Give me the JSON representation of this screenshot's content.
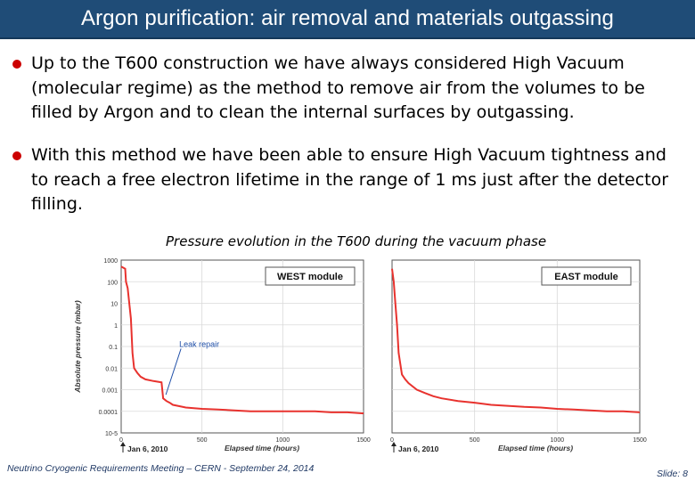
{
  "slide": {
    "title": "Argon purification: air removal and materials outgassing",
    "bullets": [
      "Up to the T600 construction we have always considered High Vacuum (molecular regime) as the method to remove air from the volumes to be filled by Argon and to clean the internal surfaces by outgassing.",
      "With this method we have been able to ensure High Vacuum tightness and to reach a free electron lifetime in the range of 1 ms just after the detector filling."
    ],
    "caption": "Pressure evolution in the T600 during the vacuum phase",
    "footer": "Neutrino Cryogenic Requirements Meeting – CERN - September 24, 2014",
    "slide_number": "Slide: 8",
    "colors": {
      "title_bar": "#1f4c77",
      "bullet": "#cc0000",
      "curve": "#e8322e",
      "annotation": "#1f4fa8"
    }
  },
  "chart_data": [
    {
      "type": "line",
      "label": "WEST module",
      "ylabel": "Absolute pressure (mbar)",
      "xlabel": "Elapsed time (hours)",
      "xlim": [
        0,
        1500
      ],
      "ylim": [
        1e-05,
        1000
      ],
      "yscale": "log",
      "yticks": [
        "1000",
        "100",
        "10",
        "1",
        "0.1",
        "0.01",
        "0.001",
        "0.0001",
        "10-5"
      ],
      "xticks": [
        "0",
        "500",
        "1000",
        "1500"
      ],
      "start_label": "Jan 6, 2010",
      "annotation": "Leak repair",
      "grid": true,
      "series": [
        {
          "x": [
            0,
            25,
            30,
            40,
            60,
            70,
            80,
            100,
            120,
            150,
            200,
            250,
            260,
            280,
            300,
            320,
            350,
            400,
            500,
            600,
            700,
            800,
            900,
            1000,
            1100,
            1200,
            1300,
            1400,
            1500
          ],
          "y": [
            500,
            400,
            100,
            50,
            2,
            0.05,
            0.01,
            0.006,
            0.004,
            0.003,
            0.0025,
            0.0022,
            0.0004,
            0.0003,
            0.00025,
            0.0002,
            0.00018,
            0.00015,
            0.00013,
            0.00012,
            0.00011,
            0.0001,
            0.0001,
            0.0001,
            0.0001,
            0.0001,
            9e-05,
            9e-05,
            8e-05
          ]
        }
      ]
    },
    {
      "type": "line",
      "label": "EAST module",
      "xlabel": "Elapsed time (hours)",
      "xlim": [
        0,
        1500
      ],
      "ylim": [
        1e-05,
        1000
      ],
      "yscale": "log",
      "xticks": [
        "0",
        "500",
        "1000",
        "1500"
      ],
      "start_label": "Jan 6, 2010",
      "grid": true,
      "series": [
        {
          "x": [
            0,
            10,
            20,
            30,
            40,
            60,
            80,
            100,
            150,
            200,
            250,
            300,
            400,
            500,
            600,
            700,
            800,
            900,
            1000,
            1100,
            1200,
            1300,
            1400,
            1500
          ],
          "y": [
            400,
            100,
            10,
            1,
            0.05,
            0.005,
            0.003,
            0.002,
            0.001,
            0.0007,
            0.0005,
            0.0004,
            0.0003,
            0.00025,
            0.0002,
            0.00018,
            0.00016,
            0.00015,
            0.00013,
            0.00012,
            0.00011,
            0.0001,
            0.0001,
            9e-05
          ]
        }
      ]
    }
  ]
}
